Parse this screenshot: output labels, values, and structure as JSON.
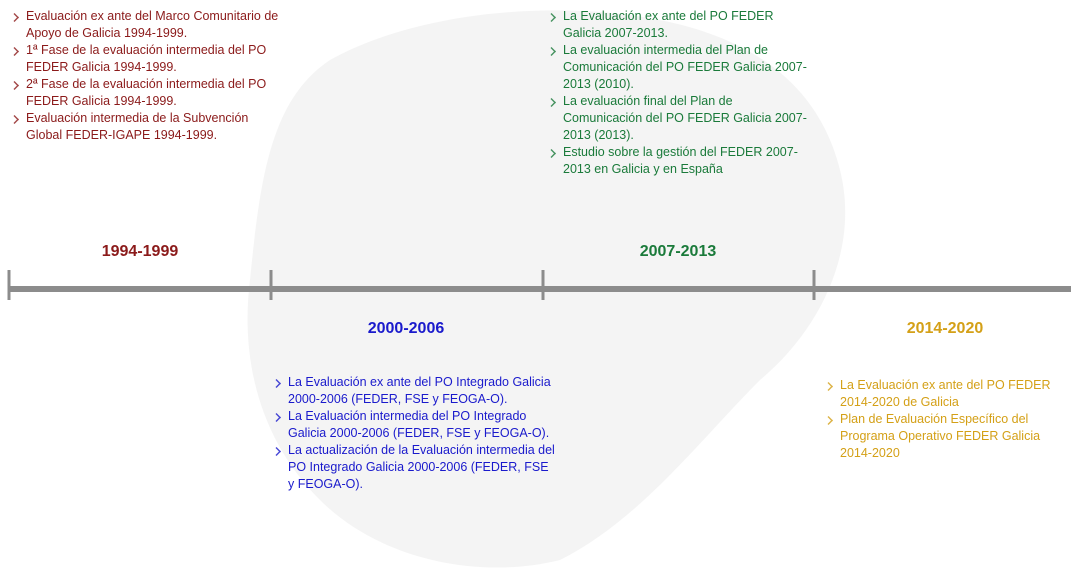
{
  "periods": [
    {
      "title": "1994-1999",
      "items": [
        "Evaluación ex ante del Marco Comunitario de Apoyo de Galicia 1994-1999.",
        "1ª Fase de la evaluación intermedia del PO FEDER Galicia 1994-1999.",
        "2ª Fase de la evaluación intermedia del PO FEDER Galicia 1994-1999.",
        "Evaluación intermedia de la Subvención Global FEDER-IGAPE 1994-1999."
      ]
    },
    {
      "title": "2000-2006",
      "items": [
        "La Evaluación ex ante del PO Integrado Galicia 2000-2006 (FEDER, FSE y FEOGA-O).",
        "La Evaluación intermedia del PO Integrado Galicia 2000-2006 (FEDER, FSE y FEOGA-O).",
        "La actualización de la Evaluación intermedia del PO Integrado Galicia 2000-2006 (FEDER, FSE y FEOGA-O)."
      ]
    },
    {
      "title": "2007-2013",
      "items": [
        "La Evaluación ex ante del PO FEDER Galicia 2007-2013.",
        "La evaluación intermedia del Plan de Comunicación del PO FEDER Galicia 2007-2013 (2010).",
        "La evaluación final del Plan de Comunicación del PO FEDER Galicia 2007-2013 (2013).",
        "Estudio sobre la gestión del FEDER 2007-2013 en Galicia y en España"
      ]
    },
    {
      "title": "2014-2020",
      "items": [
        "La Evaluación ex ante del PO FEDER 2014-2020 de Galicia",
        "Plan de Evaluación Específico del Programa Operativo FEDER Galicia 2014-2020"
      ]
    }
  ]
}
